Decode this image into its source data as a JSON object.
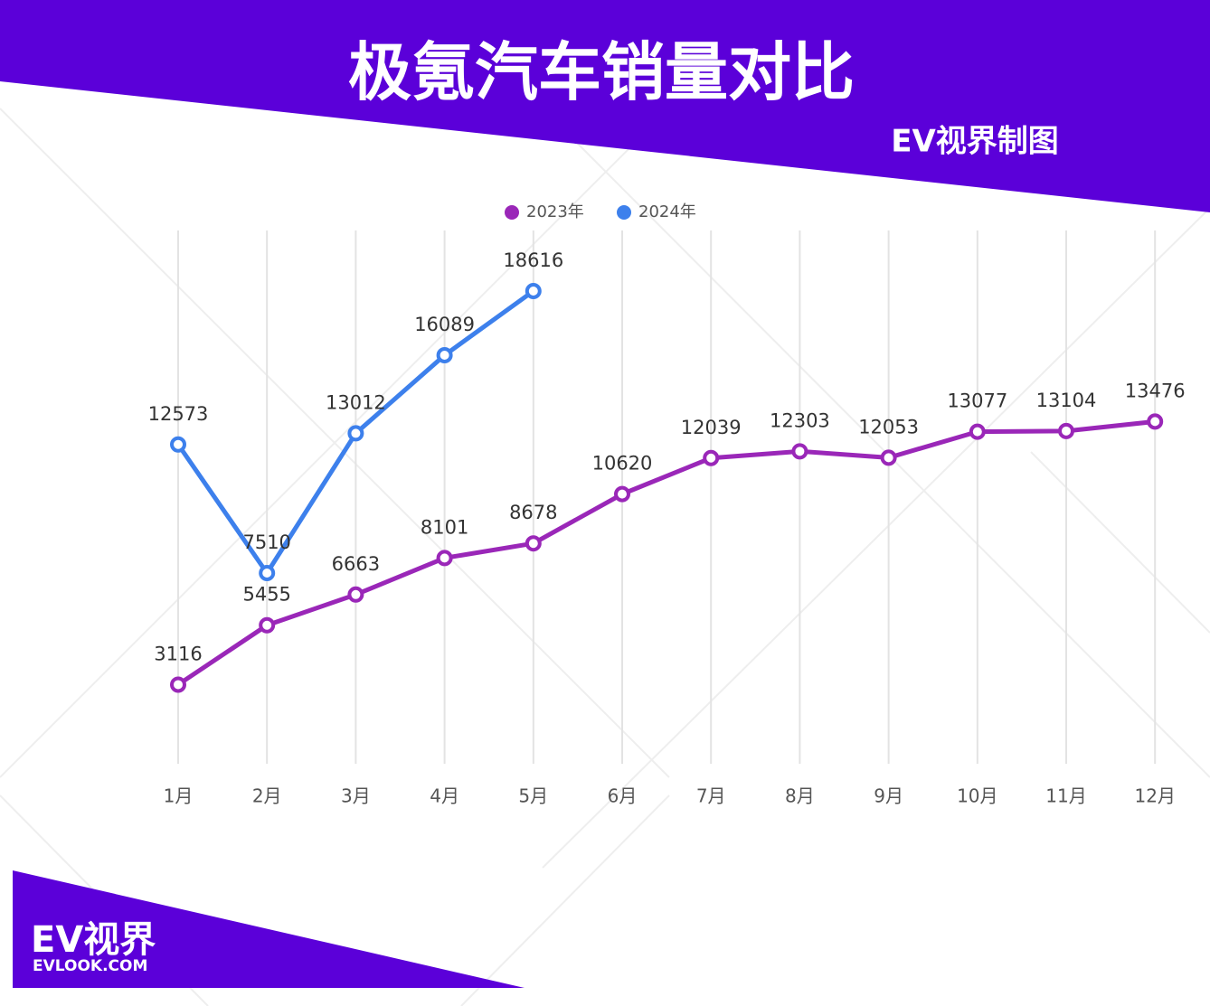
{
  "chart_data": {
    "type": "line",
    "title": "极氪汽车销量对比",
    "subtitle": "EV视界制图",
    "brand": "EV视界",
    "brand_url": "EVLOOK.COM",
    "categories": [
      "1月",
      "2月",
      "3月",
      "4月",
      "5月",
      "6月",
      "7月",
      "8月",
      "9月",
      "10月",
      "11月",
      "12月"
    ],
    "series": [
      {
        "name": "2023年",
        "color": "#9a27b8",
        "values": [
          3116,
          5455,
          6663,
          8101,
          8678,
          10620,
          12039,
          12303,
          12053,
          13077,
          13104,
          13476
        ]
      },
      {
        "name": "2024年",
        "color": "#3d80ec",
        "values": [
          12573,
          7510,
          13012,
          16089,
          18616,
          null,
          null,
          null,
          null,
          null,
          null,
          null
        ]
      }
    ],
    "ylim": [
      0,
      21000
    ],
    "grid": true
  }
}
